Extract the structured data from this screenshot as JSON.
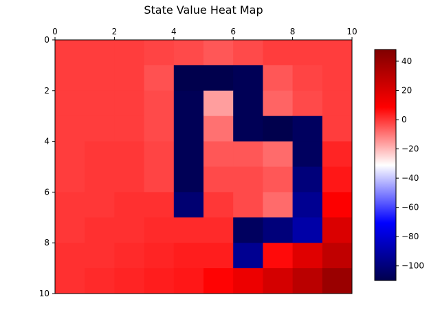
{
  "chart_data": {
    "type": "heatmap",
    "title": "State Value Heat Map",
    "xlabel": "",
    "ylabel": "",
    "xlim": [
      0,
      10
    ],
    "ylim": [
      10,
      0
    ],
    "x_ticks": [
      "0",
      "2",
      "4",
      "6",
      "8",
      "10"
    ],
    "y_ticks": [
      "0",
      "2",
      "4",
      "6",
      "8",
      "10"
    ],
    "colormap": "seismic",
    "color_range": [
      -110,
      48
    ],
    "colorbar_ticks": [
      "40",
      "20",
      "0",
      "−20",
      "−40",
      "−60",
      "−80",
      "−100"
    ],
    "colorbar_tick_values": [
      40,
      20,
      0,
      -20,
      -40,
      -60,
      -80,
      -100
    ],
    "grid": false,
    "values": [
      [
        -1,
        -1,
        -1,
        -2,
        -3,
        -5,
        -3,
        -1,
        -1,
        -1
      ],
      [
        -1,
        -1,
        -1,
        -4,
        -110,
        -110,
        -108,
        -5,
        -2,
        -1
      ],
      [
        -1,
        -1,
        -1,
        -3,
        -108,
        -16,
        -108,
        -7,
        -3,
        -1
      ],
      [
        -1,
        -1,
        -1,
        -3,
        -108,
        -9,
        -108,
        -110,
        -106,
        -1
      ],
      [
        -1,
        0,
        0,
        -2,
        -108,
        -5,
        -5,
        -8,
        -106,
        3
      ],
      [
        -1,
        0,
        0,
        -2,
        -108,
        -3,
        -3,
        -5,
        -100,
        5
      ],
      [
        0,
        0,
        1,
        1,
        -102,
        0,
        -3,
        -8,
        -95,
        9
      ],
      [
        0,
        1,
        1,
        2,
        2,
        2,
        -106,
        -100,
        -90,
        20
      ],
      [
        1,
        1,
        2,
        3,
        4,
        4,
        -95,
        7,
        18,
        28
      ],
      [
        1,
        2,
        3,
        4,
        5,
        8,
        14,
        22,
        30,
        40
      ]
    ]
  }
}
